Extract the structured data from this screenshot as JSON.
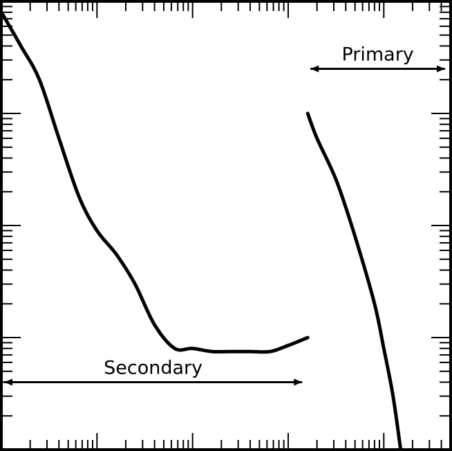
{
  "chart_data": {
    "type": "line",
    "title": "",
    "xlabel": "",
    "ylabel": "",
    "x_scale": "log",
    "y_scale": "log",
    "xlim": [
      0.1,
      5000
    ],
    "ylim": [
      0.01,
      100
    ],
    "grid": false,
    "legend": "none",
    "line_color": "#000000",
    "series": [
      {
        "name": "",
        "x": [
          0.1,
          0.16,
          0.25,
          0.4,
          0.65,
          1,
          1.6,
          2.5,
          4,
          6.5,
          10,
          16,
          25,
          40,
          65,
          100,
          160
        ],
        "y": [
          80,
          40,
          20,
          6,
          1.8,
          0.9,
          0.55,
          0.3,
          0.13,
          0.08,
          0.08,
          0.075,
          0.075,
          0.075,
          0.075,
          0.085,
          0.1
        ]
      },
      {
        "name": "",
        "x": [
          160,
          200,
          320,
          500,
          800,
          1000,
          1250,
          1500
        ],
        "y": [
          10,
          6,
          2.5,
          0.8,
          0.2,
          0.08,
          0.03,
          0.01
        ]
      }
    ],
    "annotations": [
      {
        "text": "Secondary",
        "x_range": [
          0.1,
          160
        ],
        "y": 0.04
      },
      {
        "text": "Primary",
        "x_range": [
          160,
          5000
        ],
        "y": 25
      }
    ]
  }
}
